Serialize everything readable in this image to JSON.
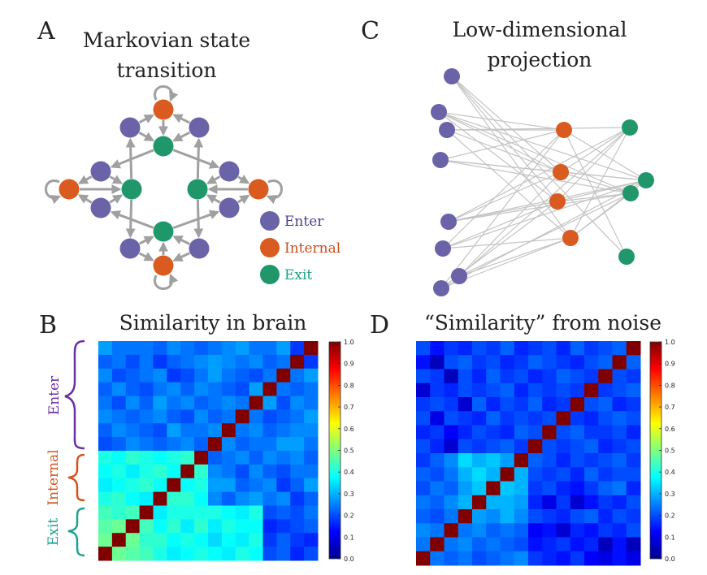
{
  "panels": {
    "A": {
      "letter": "A",
      "title_line1": "Markovian state",
      "title_line2": "transition"
    },
    "B": {
      "letter": "B",
      "title": "Similarity in brain"
    },
    "C": {
      "letter": "C",
      "title_line1": "Low-dimensional",
      "title_line2": "projection"
    },
    "D": {
      "letter": "D",
      "title": "“Similarity” from noise"
    }
  },
  "legend": [
    {
      "label": "Enter",
      "color": "#6a63a8",
      "text_color": "#4b3f8f"
    },
    {
      "label": "Internal",
      "color": "#d95b1f",
      "text_color": "#c8501c"
    },
    {
      "label": "Exit",
      "color": "#20976b",
      "text_color": "#1aa189"
    }
  ],
  "brackets": [
    {
      "label": "Enter",
      "color": "#6b2fa8"
    },
    {
      "label": "Internal",
      "color": "#d4521c"
    },
    {
      "label": "Exit",
      "color": "#1aa18f"
    }
  ],
  "colorbar_ticks": [
    "0.0",
    "0.1",
    "0.2",
    "0.3",
    "0.4",
    "0.5",
    "0.6",
    "0.7",
    "0.8",
    "0.9",
    "1.0"
  ],
  "colors": {
    "enter": "#6a63a8",
    "internal": "#d95b1f",
    "exit": "#20976b",
    "edge": "#a0a0a0",
    "projection_edge": "#c4c4c4"
  },
  "chart_data": [
    {
      "type": "heatmap",
      "title": "Similarity in brain",
      "colorscale": "jet",
      "zlim": [
        0,
        1
      ],
      "matrix": [
        [
          0.28,
          0.24,
          0.24,
          0.24,
          0.22,
          0.26,
          0.24,
          0.22,
          0.24,
          0.26,
          0.28,
          0.24,
          0.24,
          0.28,
          0.18,
          1.0
        ],
        [
          0.22,
          0.24,
          0.2,
          0.24,
          0.18,
          0.22,
          0.24,
          0.26,
          0.28,
          0.26,
          0.24,
          0.26,
          0.22,
          0.24,
          1.0,
          0.18
        ],
        [
          0.26,
          0.2,
          0.22,
          0.24,
          0.26,
          0.18,
          0.2,
          0.24,
          0.28,
          0.24,
          0.22,
          0.2,
          0.24,
          1.0,
          0.24,
          0.28
        ],
        [
          0.22,
          0.26,
          0.22,
          0.2,
          0.24,
          0.26,
          0.22,
          0.26,
          0.24,
          0.22,
          0.2,
          0.28,
          1.0,
          0.24,
          0.22,
          0.24
        ],
        [
          0.24,
          0.2,
          0.26,
          0.22,
          0.28,
          0.24,
          0.26,
          0.22,
          0.24,
          0.26,
          0.24,
          1.0,
          0.28,
          0.2,
          0.26,
          0.24
        ],
        [
          0.26,
          0.24,
          0.22,
          0.24,
          0.26,
          0.22,
          0.2,
          0.26,
          0.22,
          0.24,
          1.0,
          0.24,
          0.2,
          0.22,
          0.24,
          0.28
        ],
        [
          0.22,
          0.26,
          0.24,
          0.22,
          0.2,
          0.28,
          0.24,
          0.24,
          0.26,
          1.0,
          0.24,
          0.26,
          0.22,
          0.24,
          0.26,
          0.26
        ],
        [
          0.2,
          0.22,
          0.26,
          0.24,
          0.22,
          0.24,
          0.26,
          0.22,
          1.0,
          0.26,
          0.22,
          0.24,
          0.24,
          0.28,
          0.28,
          0.24
        ],
        [
          0.4,
          0.38,
          0.42,
          0.4,
          0.38,
          0.4,
          0.42,
          1.0,
          0.22,
          0.24,
          0.26,
          0.22,
          0.26,
          0.24,
          0.26,
          0.22
        ],
        [
          0.38,
          0.4,
          0.36,
          0.4,
          0.42,
          0.38,
          1.0,
          0.42,
          0.26,
          0.24,
          0.2,
          0.26,
          0.22,
          0.2,
          0.24,
          0.24
        ],
        [
          0.36,
          0.38,
          0.4,
          0.42,
          0.38,
          1.0,
          0.38,
          0.4,
          0.28,
          0.28,
          0.22,
          0.24,
          0.26,
          0.18,
          0.22,
          0.28
        ],
        [
          0.4,
          0.42,
          0.38,
          0.36,
          1.0,
          0.42,
          0.42,
          0.38,
          0.26,
          0.22,
          0.26,
          0.28,
          0.24,
          0.26,
          0.18,
          0.22
        ],
        [
          0.44,
          0.42,
          0.44,
          1.0,
          0.36,
          0.4,
          0.4,
          0.4,
          0.4,
          0.38,
          0.36,
          0.4,
          0.2,
          0.22,
          0.2,
          0.24
        ],
        [
          0.46,
          0.48,
          1.0,
          0.44,
          0.38,
          0.42,
          0.36,
          0.42,
          0.36,
          0.4,
          0.38,
          0.38,
          0.16,
          0.18,
          0.2,
          0.22
        ],
        [
          0.48,
          1.0,
          0.48,
          0.42,
          0.42,
          0.38,
          0.4,
          0.38,
          0.34,
          0.38,
          0.36,
          0.4,
          0.18,
          0.22,
          0.18,
          0.16
        ],
        [
          1.0,
          0.48,
          0.46,
          0.44,
          0.4,
          0.36,
          0.38,
          0.4,
          0.38,
          0.36,
          0.4,
          0.38,
          0.2,
          0.22,
          0.16,
          0.2
        ]
      ]
    },
    {
      "type": "heatmap",
      "title": "“Similarity” from noise",
      "colorscale": "jet",
      "zlim": [
        0,
        1
      ],
      "matrix": [
        [
          0.2,
          0.14,
          0.18,
          0.16,
          0.2,
          0.18,
          0.22,
          0.16,
          0.18,
          0.2,
          0.16,
          0.22,
          0.18,
          0.2,
          0.22,
          1.0
        ],
        [
          0.14,
          0.06,
          0.2,
          0.22,
          0.18,
          0.2,
          0.16,
          0.18,
          0.22,
          0.2,
          0.18,
          0.16,
          0.2,
          0.22,
          1.0,
          0.22
        ],
        [
          0.2,
          0.18,
          0.06,
          0.2,
          0.16,
          0.22,
          0.18,
          0.2,
          0.16,
          0.18,
          0.22,
          0.2,
          0.18,
          1.0,
          0.2,
          0.18
        ],
        [
          0.08,
          0.18,
          0.16,
          0.2,
          0.18,
          0.2,
          0.22,
          0.16,
          0.2,
          0.18,
          0.2,
          0.18,
          1.0,
          0.18,
          0.2,
          0.22
        ],
        [
          0.18,
          0.2,
          0.18,
          0.08,
          0.22,
          0.16,
          0.2,
          0.18,
          0.22,
          0.16,
          0.18,
          1.0,
          0.2,
          0.22,
          0.16,
          0.18
        ],
        [
          0.2,
          0.1,
          0.2,
          0.18,
          0.16,
          0.22,
          0.18,
          0.2,
          0.18,
          0.2,
          1.0,
          0.18,
          0.16,
          0.2,
          0.22,
          0.2
        ],
        [
          0.16,
          0.18,
          0.12,
          0.16,
          0.2,
          0.18,
          0.16,
          0.22,
          0.2,
          1.0,
          0.2,
          0.22,
          0.18,
          0.18,
          0.2,
          0.16
        ],
        [
          0.2,
          0.16,
          0.08,
          0.2,
          0.18,
          0.2,
          0.22,
          0.18,
          1.0,
          0.2,
          0.18,
          0.2,
          0.22,
          0.16,
          0.18,
          0.2
        ],
        [
          0.18,
          0.22,
          0.26,
          0.34,
          0.3,
          0.32,
          0.28,
          1.0,
          0.22,
          0.2,
          0.16,
          0.2,
          0.18,
          0.2,
          0.22,
          0.18
        ],
        [
          0.22,
          0.2,
          0.24,
          0.3,
          0.34,
          0.3,
          1.0,
          0.3,
          0.2,
          0.18,
          0.2,
          0.16,
          0.22,
          0.18,
          0.2,
          0.2
        ],
        [
          0.2,
          0.24,
          0.22,
          0.28,
          0.32,
          1.0,
          0.32,
          0.3,
          0.18,
          0.2,
          0.16,
          0.14,
          0.18,
          0.22,
          0.24,
          0.16
        ],
        [
          0.24,
          0.22,
          0.26,
          0.3,
          1.0,
          0.3,
          0.3,
          0.28,
          0.16,
          0.1,
          0.18,
          0.08,
          0.14,
          0.18,
          0.16,
          0.2
        ],
        [
          0.22,
          0.2,
          0.24,
          1.0,
          0.28,
          0.26,
          0.3,
          0.26,
          0.2,
          0.18,
          0.16,
          0.2,
          0.22,
          0.16,
          0.2,
          0.18
        ],
        [
          0.26,
          0.24,
          1.0,
          0.24,
          0.26,
          0.22,
          0.24,
          0.22,
          0.12,
          0.14,
          0.08,
          0.16,
          0.14,
          0.18,
          0.16,
          0.2
        ],
        [
          0.24,
          1.0,
          0.24,
          0.26,
          0.22,
          0.24,
          0.22,
          0.2,
          0.14,
          0.16,
          0.18,
          0.14,
          0.16,
          0.06,
          0.14,
          0.06
        ],
        [
          1.0,
          0.24,
          0.22,
          0.24,
          0.2,
          0.22,
          0.24,
          0.26,
          0.18,
          0.16,
          0.14,
          0.18,
          0.12,
          0.1,
          0.14,
          0.1
        ]
      ]
    }
  ]
}
